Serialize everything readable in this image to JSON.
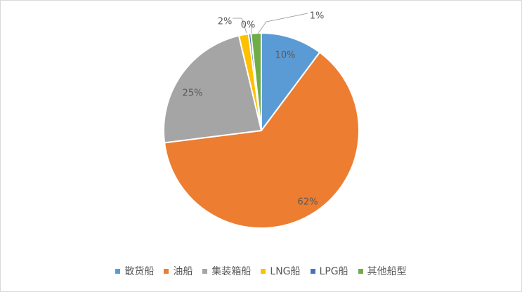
{
  "chart_data": {
    "type": "pie",
    "title": "",
    "series": [
      {
        "name": "散货船",
        "value": 10,
        "label": "10%",
        "color": "#5b9bd5"
      },
      {
        "name": "油船",
        "value": 62,
        "label": "62%",
        "color": "#ed7d31"
      },
      {
        "name": "集装箱船",
        "value": 25,
        "label": "25%",
        "color": "#a5a5a5"
      },
      {
        "name": "LNG船",
        "value": 2,
        "label": "2%",
        "color": "#ffc000"
      },
      {
        "name": "LPG船",
        "value": 0,
        "label": "0%",
        "color": "#4472c4"
      },
      {
        "name": "其他船型",
        "value": 1,
        "label": "1%",
        "color": "#70ad47"
      }
    ],
    "legend": "bottom"
  }
}
